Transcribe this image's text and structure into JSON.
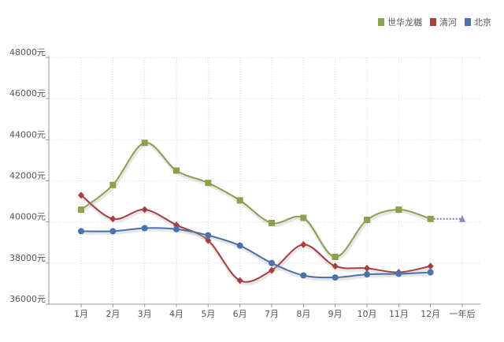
{
  "chart_data": {
    "type": "line",
    "categories": [
      "1月",
      "2月",
      "3月",
      "4月",
      "5月",
      "6月",
      "7月",
      "8月",
      "9月",
      "10月",
      "11月",
      "12月",
      "一年后"
    ],
    "y_ticks": [
      "36000元",
      "38000元",
      "40000元",
      "42000元",
      "44000元",
      "46000元",
      "48000元"
    ],
    "ylim": [
      36000,
      48000
    ],
    "grid": true,
    "legend_position": "top-right",
    "series": [
      {
        "name": "世华龙樾",
        "color": "#8aa14e",
        "marker": "square",
        "values": [
          40600,
          41800,
          43850,
          42500,
          41900,
          41050,
          39950,
          40200,
          38300,
          40100,
          40600,
          40150,
          null
        ]
      },
      {
        "name": "清河",
        "color": "#a54040",
        "marker": "diamond",
        "values": [
          41300,
          40150,
          40600,
          39850,
          39100,
          37150,
          37650,
          38900,
          37850,
          37750,
          37550,
          37850,
          null
        ]
      },
      {
        "name": "北京",
        "color": "#4a72a8",
        "marker": "circle",
        "values": [
          39550,
          39550,
          39700,
          39650,
          39350,
          38850,
          38000,
          37400,
          37300,
          37450,
          37480,
          37550,
          null
        ]
      }
    ],
    "forecast": {
      "from_category": "12月",
      "to_category": "一年后",
      "value": 40150,
      "color": "#8a8ab8",
      "style": "dotted"
    }
  }
}
